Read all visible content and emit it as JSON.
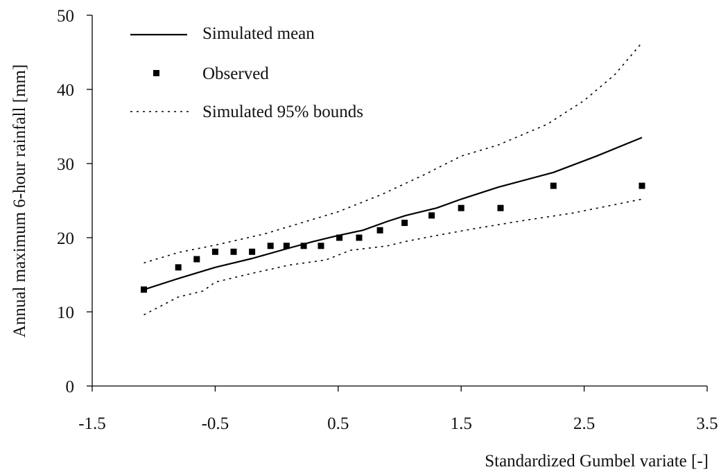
{
  "chart_data": {
    "type": "line",
    "xlabel": "Standardized Gumbel variate [-]",
    "ylabel": "Annual maximum 6-hour rainfall [mm]",
    "xlim": [
      -1.5,
      3.5
    ],
    "ylim": [
      0,
      50
    ],
    "x_ticks": [
      "-1.5",
      "-0.5",
      "0.5",
      "1.5",
      "2.5",
      "3.5"
    ],
    "y_ticks": [
      "0",
      "10",
      "20",
      "30",
      "40",
      "50"
    ],
    "grid": false,
    "legend_position": "top-left",
    "series": [
      {
        "name": "Simulated mean",
        "style": "solid",
        "color": "#000000",
        "points": [
          [
            -1.08,
            13.0
          ],
          [
            -0.8,
            14.5
          ],
          [
            -0.5,
            16.0
          ],
          [
            -0.2,
            17.2
          ],
          [
            0.1,
            18.6
          ],
          [
            0.3,
            19.5
          ],
          [
            0.5,
            20.3
          ],
          [
            0.7,
            21.0
          ],
          [
            0.9,
            22.2
          ],
          [
            1.05,
            23.0
          ],
          [
            1.3,
            24.0
          ],
          [
            1.5,
            25.2
          ],
          [
            1.8,
            26.8
          ],
          [
            2.25,
            28.8
          ],
          [
            2.6,
            31.0
          ],
          [
            2.97,
            33.5
          ]
        ]
      },
      {
        "name": "Simulated 95% bounds",
        "style": "dotted",
        "color": "#000000",
        "points": [
          [
            -1.08,
            16.6
          ],
          [
            -0.8,
            18.0
          ],
          [
            -0.5,
            19.0
          ],
          [
            -0.1,
            20.5
          ],
          [
            0.2,
            22.0
          ],
          [
            0.5,
            23.5
          ],
          [
            0.85,
            25.8
          ],
          [
            1.2,
            28.5
          ],
          [
            1.5,
            31.0
          ],
          [
            1.8,
            32.5
          ],
          [
            2.2,
            35.3
          ],
          [
            2.5,
            38.5
          ],
          [
            2.75,
            42.0
          ],
          [
            2.97,
            46.3
          ]
        ]
      },
      {
        "name": "",
        "style": "dotted",
        "color": "#000000",
        "points": [
          [
            -1.08,
            9.6
          ],
          [
            -0.8,
            12.0
          ],
          [
            -0.6,
            12.8
          ],
          [
            -0.5,
            14.0
          ],
          [
            -0.2,
            15.2
          ],
          [
            0.1,
            16.3
          ],
          [
            0.4,
            17.0
          ],
          [
            0.6,
            18.3
          ],
          [
            0.9,
            18.9
          ],
          [
            1.05,
            19.5
          ],
          [
            1.3,
            20.3
          ],
          [
            1.6,
            21.2
          ],
          [
            2.0,
            22.3
          ],
          [
            2.4,
            23.3
          ],
          [
            2.97,
            25.2
          ]
        ]
      }
    ],
    "observed": {
      "name": "Observed",
      "marker": "square",
      "color": "#000000",
      "points": [
        [
          -1.08,
          13.0
        ],
        [
          -0.8,
          16.0
        ],
        [
          -0.65,
          17.1
        ],
        [
          -0.5,
          18.1
        ],
        [
          -0.35,
          18.1
        ],
        [
          -0.2,
          18.1
        ],
        [
          -0.05,
          18.9
        ],
        [
          0.08,
          18.9
        ],
        [
          0.22,
          18.9
        ],
        [
          0.36,
          18.9
        ],
        [
          0.51,
          20.0
        ],
        [
          0.67,
          20.0
        ],
        [
          0.84,
          21.0
        ],
        [
          1.04,
          22.0
        ],
        [
          1.26,
          23.0
        ],
        [
          1.5,
          24.0
        ],
        [
          1.82,
          24.0
        ],
        [
          2.25,
          27.0
        ],
        [
          2.97,
          27.0
        ]
      ]
    }
  },
  "legend": {
    "mean_label": "Simulated mean",
    "observed_label": "Observed",
    "bounds_label": "Simulated 95% bounds"
  }
}
